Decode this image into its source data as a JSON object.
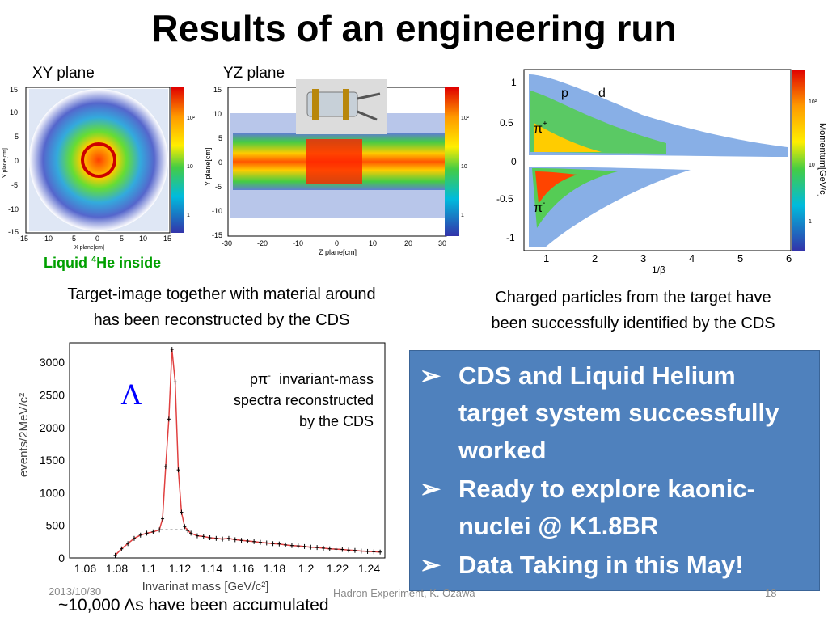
{
  "title": "Results of an engineering run",
  "plots": {
    "xy_label": "XY plane",
    "yz_label": "YZ plane",
    "xy_xaxis": "X plane[cm]",
    "xy_yaxis": "Y plane[cm]",
    "yz_xaxis": "Z plane[cm]",
    "yz_yaxis": "Y plane[cm]",
    "xy_xticks": [
      "-15",
      "-10",
      "-5",
      "0",
      "5",
      "10",
      "15"
    ],
    "xy_yticks": [
      "15",
      "10",
      "5",
      "0",
      "-5",
      "-10",
      "-15"
    ],
    "yz_xticks": [
      "-30",
      "-20",
      "-10",
      "0",
      "10",
      "20",
      "30"
    ],
    "yz_yticks": [
      "15",
      "10",
      "5",
      "0",
      "-5",
      "-10",
      "-15"
    ],
    "color_ticks": [
      "10²",
      "10",
      "1"
    ],
    "liquid_pre": "Liquid ",
    "liquid_sup": "4",
    "liquid_post": "He inside",
    "pid_yaxis": "Momentum[GeV/c]",
    "pid_xaxis": "1/β",
    "pid_xticks": [
      "1",
      "2",
      "3",
      "4",
      "5",
      "6"
    ],
    "pid_yticks": [
      "1",
      "0.5",
      "0",
      "-0.5",
      "-1"
    ],
    "pid_labels": {
      "p": "p",
      "d": "d",
      "pi_plus": "π",
      "pi_plus_sup": "+",
      "pi_minus": "π",
      "pi_minus_sup": "-"
    }
  },
  "captions": {
    "target_line1": "Target-image together with material around",
    "target_line2": "has been reconstructed by the CDS",
    "pid_line1": "Charged particles from the target have",
    "pid_line2": "been successfully identified by the CDS"
  },
  "mass_plot": {
    "annot_line1_a": "pπ",
    "annot_line1_sup": "-",
    "annot_line1_b": "  invariant-mass",
    "annot_line2": "spectra reconstructed",
    "annot_line3": "by the CDS",
    "lambda": "Λ",
    "accumulated_pre": "~10,000 ",
    "accumulated_sym": "Λ",
    "accumulated_post": "s have been accumulated"
  },
  "chart_data": {
    "type": "scatter",
    "title": "",
    "xlabel": "Invarinat mass [GeV/c²]",
    "ylabel": "events/2MeV/c²",
    "xlim": [
      1.05,
      1.25
    ],
    "ylim": [
      0,
      3300
    ],
    "xticks": [
      "1.06",
      "1.08",
      "1.1",
      "1.12",
      "1.14",
      "1.16",
      "1.18",
      "1.2",
      "1.22",
      "1.24"
    ],
    "yticks": [
      "0",
      "500",
      "1000",
      "1500",
      "2000",
      "2500",
      "3000"
    ],
    "series": [
      {
        "x": [
          1.079,
          1.083,
          1.087,
          1.091,
          1.095,
          1.099,
          1.103,
          1.107,
          1.109,
          1.111,
          1.113,
          1.115,
          1.117,
          1.119,
          1.121,
          1.123,
          1.125,
          1.127,
          1.131,
          1.135,
          1.139,
          1.143,
          1.147,
          1.151,
          1.155,
          1.159,
          1.163,
          1.167,
          1.171,
          1.175,
          1.179,
          1.183,
          1.187,
          1.191,
          1.195,
          1.199,
          1.203,
          1.207,
          1.211,
          1.215,
          1.219,
          1.223,
          1.227,
          1.231,
          1.235,
          1.239,
          1.243,
          1.247
        ],
        "y": [
          40,
          140,
          220,
          300,
          350,
          380,
          400,
          430,
          600,
          1400,
          2130,
          3200,
          2700,
          1350,
          700,
          480,
          420,
          380,
          340,
          330,
          310,
          300,
          290,
          300,
          280,
          270,
          260,
          250,
          240,
          230,
          220,
          215,
          200,
          190,
          185,
          175,
          165,
          160,
          150,
          140,
          135,
          130,
          120,
          115,
          105,
          100,
          95,
          90
        ]
      }
    ]
  },
  "bullets": [
    {
      "arrow": "➢",
      "text": "CDS and Liquid Helium target system successfully worked"
    },
    {
      "arrow": "➢",
      "text": "Ready to explore kaonic-nuclei @ K1.8BR"
    },
    {
      "arrow": "➢",
      "text": "Data Taking in this May!"
    }
  ],
  "footer": {
    "date": "2013/10/30",
    "center": "Hadron Experiment, K. Ozawa",
    "page": "18"
  }
}
